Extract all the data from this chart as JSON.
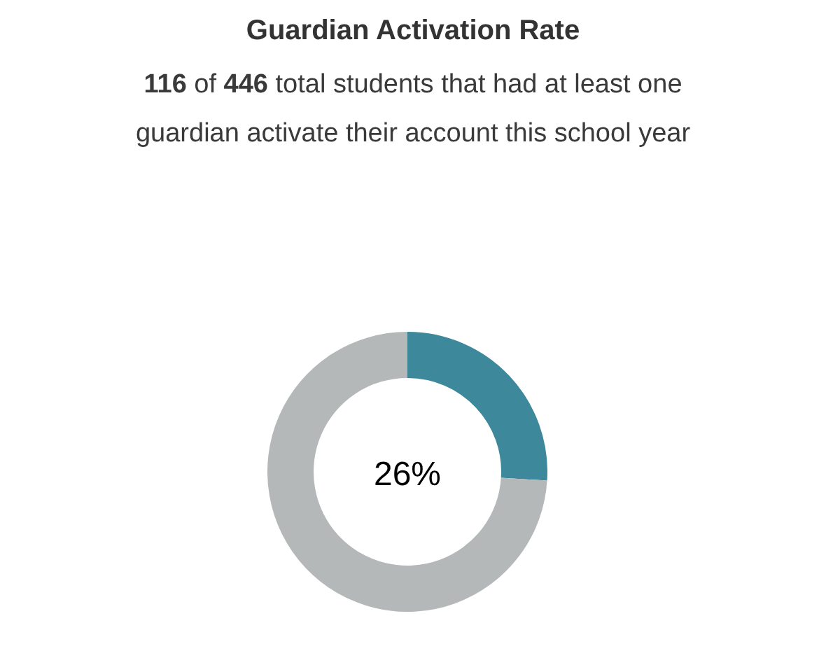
{
  "chart_data": {
    "type": "donut",
    "title": "Guardian Activation Rate",
    "subtitle": "116 of 446 total students that had at least one guardian activate their account this school year",
    "categories": [
      null,
      null
    ],
    "values": [
      26,
      74
    ],
    "colors": [
      "#3d889b",
      "#b5b8b9"
    ],
    "annotations": [
      "26%"
    ]
  }
}
